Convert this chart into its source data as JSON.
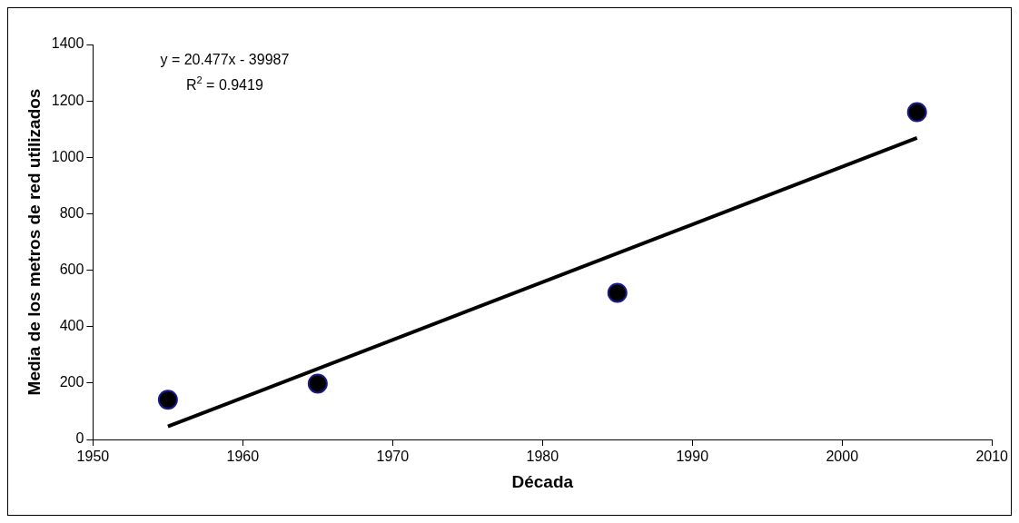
{
  "chart_data": {
    "type": "scatter",
    "xlabel": "Década",
    "ylabel": "Media de los metros de red utilizados",
    "xlim": [
      1950,
      2010
    ],
    "xticks": [
      1950,
      1960,
      1970,
      1980,
      1990,
      2000,
      2010
    ],
    "ylim": [
      0,
      1400
    ],
    "yticks": [
      0,
      200,
      400,
      600,
      800,
      1000,
      1200,
      1400
    ],
    "grid": false,
    "legend": false,
    "marker": "circle",
    "series": [
      {
        "color": "#000000",
        "x": [
          1955,
          1965,
          1985,
          2005
        ],
        "values": [
          141,
          198,
          520,
          1160
        ]
      },
      {
        "type": "line",
        "color": "#000000",
        "line_style": "solid",
        "marker": "none",
        "x": [
          1955,
          2005
        ],
        "values": [
          46,
          1069
        ]
      }
    ],
    "annotations": [
      "y = 20.477x - 39987",
      "R$^{2}$ = 0.9419"
    ]
  }
}
